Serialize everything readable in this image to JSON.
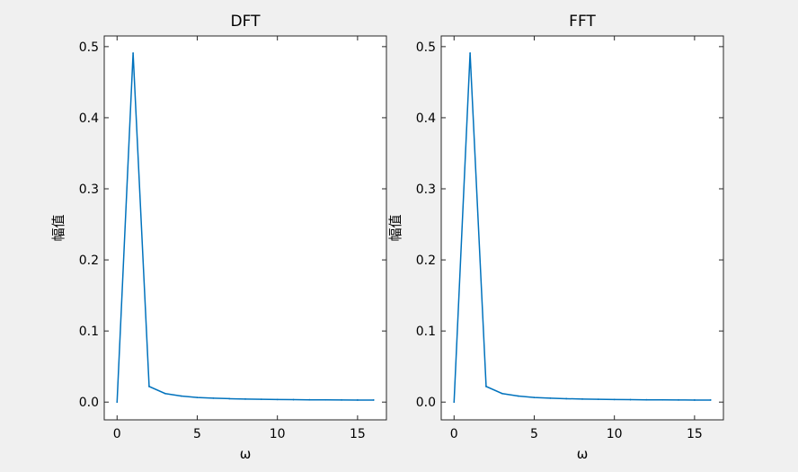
{
  "chart_data": [
    {
      "type": "line",
      "title": "DFT",
      "xlabel": "ω",
      "ylabel": "幅值",
      "xlim": [
        -0.8,
        16.8
      ],
      "ylim": [
        -0.025,
        0.515
      ],
      "xticks": [
        0,
        5,
        10,
        15
      ],
      "yticks": [
        0.0,
        0.1,
        0.2,
        0.3,
        0.4,
        0.5
      ],
      "grid": false,
      "color": "#0072bd",
      "series": [
        {
          "x": [
            0,
            1,
            2,
            3,
            4,
            5,
            6,
            7,
            8,
            9,
            10,
            11,
            12,
            13,
            14,
            15,
            16
          ],
          "values": [
            0.0,
            0.491,
            0.022,
            0.012,
            0.0085,
            0.0065,
            0.0055,
            0.0048,
            0.0043,
            0.0039,
            0.0036,
            0.0034,
            0.0032,
            0.0031,
            0.003,
            0.0029,
            0.0029
          ]
        }
      ]
    },
    {
      "type": "line",
      "title": "FFT",
      "xlabel": "ω",
      "ylabel": "幅值",
      "xlim": [
        -0.8,
        16.8
      ],
      "ylim": [
        -0.025,
        0.515
      ],
      "xticks": [
        0,
        5,
        10,
        15
      ],
      "yticks": [
        0.0,
        0.1,
        0.2,
        0.3,
        0.4,
        0.5
      ],
      "grid": false,
      "color": "#0072bd",
      "series": [
        {
          "x": [
            0,
            1,
            2,
            3,
            4,
            5,
            6,
            7,
            8,
            9,
            10,
            11,
            12,
            13,
            14,
            15,
            16
          ],
          "values": [
            0.0,
            0.491,
            0.022,
            0.012,
            0.0085,
            0.0065,
            0.0055,
            0.0048,
            0.0043,
            0.0039,
            0.0036,
            0.0034,
            0.0032,
            0.0031,
            0.003,
            0.0029,
            0.0029
          ]
        }
      ]
    }
  ]
}
